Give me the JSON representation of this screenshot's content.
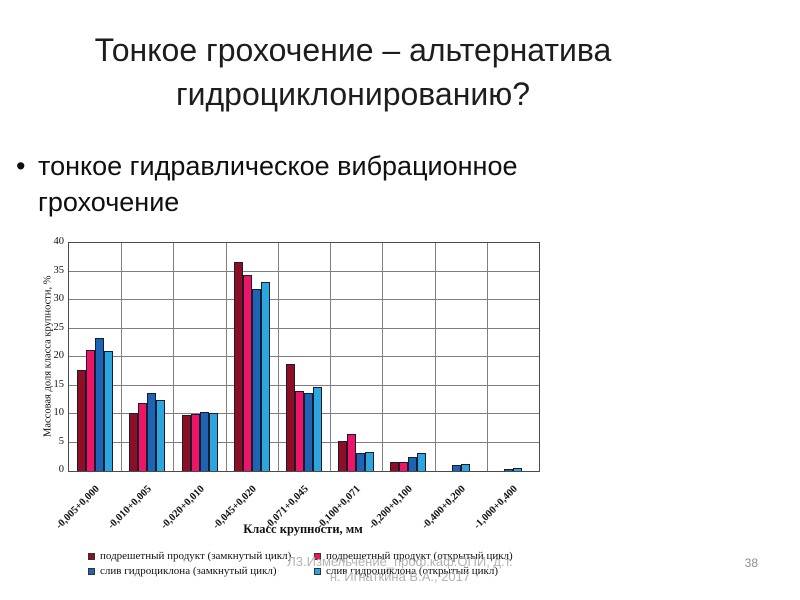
{
  "slide": {
    "title_line1": "Тонкое грохочение – альтернатива",
    "title_line2": "гидроциклонированию?",
    "bullet": "тонкое гидравлическое вибрационное грохочение",
    "footer_line1": "Л3.Измельчение_проф.каф.ОПИ, д.т.",
    "footer_line2": "н. Игнаткина В.А., 2017",
    "page_number": "38"
  },
  "chart_data": {
    "type": "bar",
    "title": "",
    "xlabel": "Класс крупности, мм",
    "ylabel": "Массовая доля класса крупности, %",
    "ylim": [
      0,
      40
    ],
    "ytick_step": 5,
    "grid": true,
    "legend_position": "bottom",
    "categories": [
      "-0,005+0,000",
      "-0,010+0,005",
      "-0,020+0,010",
      "-0,045+0,020",
      "-0,071+0,045",
      "-0,100+0,071",
      "-0,200+0,100",
      "-0,400+0,200",
      "-1,000+0,400"
    ],
    "series": [
      {
        "name": "подрешетный продукт (замкнутый цикл)",
        "color": "#8E0F23",
        "values": [
          17.7,
          10.2,
          9.9,
          36.7,
          18.8,
          5.2,
          1.5,
          0,
          0
        ]
      },
      {
        "name": "подрешетный продукт (открытый цикл)",
        "color": "#EC1566",
        "values": [
          21.3,
          12.0,
          10.0,
          34.4,
          14.0,
          6.5,
          1.6,
          0,
          0
        ]
      },
      {
        "name": "слив гидроциклона (замкнутый цикл)",
        "color": "#1D64B5",
        "values": [
          23.4,
          13.6,
          10.4,
          32.0,
          13.6,
          3.1,
          2.5,
          1.0,
          0.4
        ]
      },
      {
        "name": "слив гидроциклона (открытый цикл)",
        "color": "#2BA6DE",
        "values": [
          21.1,
          12.4,
          10.2,
          33.1,
          14.7,
          3.3,
          3.2,
          1.2,
          0.5
        ]
      }
    ]
  }
}
